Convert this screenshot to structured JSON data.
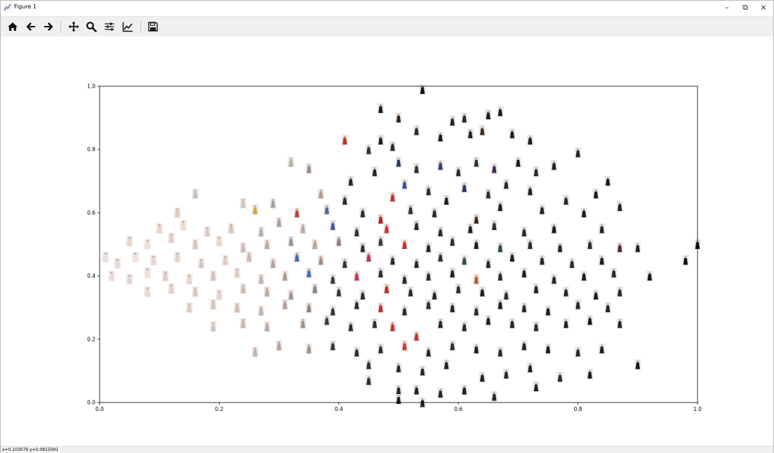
{
  "window": {
    "title": "Figure 1",
    "controls": {
      "minimize": "–",
      "restore": "⧉",
      "close": "×"
    }
  },
  "toolbar": {
    "buttons": [
      {
        "name": "home-icon"
      },
      {
        "name": "back-arrow-icon"
      },
      {
        "name": "forward-arrow-icon"
      },
      {
        "name": "pan-icon"
      },
      {
        "name": "zoom-icon"
      },
      {
        "name": "configure-subplots-icon"
      },
      {
        "name": "edit-axis-icon"
      },
      {
        "name": "save-icon"
      }
    ]
  },
  "status": {
    "coordinates": "x=0.103079    y=0.0815091"
  },
  "chart_data": {
    "type": "scatter",
    "title": "",
    "xlabel": "",
    "ylabel": "",
    "xlim": [
      0.0,
      1.0
    ],
    "ylim": [
      0.0,
      1.0
    ],
    "xticks": [
      "0.0",
      "0.2",
      "0.4",
      "0.6",
      "0.8",
      "1.0"
    ],
    "yticks": [
      "0.0",
      "0.2",
      "0.4",
      "0.6",
      "0.8",
      "1.0"
    ],
    "grid": false,
    "marker": "image thumbnails",
    "points": [
      {
        "x": 0.54,
        "y": 0.99,
        "c": "#111111"
      },
      {
        "x": 0.47,
        "y": 0.93,
        "c": "#1a1a1a"
      },
      {
        "x": 0.67,
        "y": 0.92,
        "c": "#1c1c1c"
      },
      {
        "x": 0.59,
        "y": 0.89,
        "c": "#222222"
      },
      {
        "x": 0.61,
        "y": 0.9,
        "c": "#262626"
      },
      {
        "x": 0.65,
        "y": 0.91,
        "c": "#1e1e1e"
      },
      {
        "x": 0.5,
        "y": 0.9,
        "c": "#2e2420"
      },
      {
        "x": 0.53,
        "y": 0.86,
        "c": "#2a2a2a"
      },
      {
        "x": 0.41,
        "y": 0.83,
        "c": "#c0312a"
      },
      {
        "x": 0.45,
        "y": 0.8,
        "c": "#303030"
      },
      {
        "x": 0.47,
        "y": 0.83,
        "c": "#202020"
      },
      {
        "x": 0.49,
        "y": 0.81,
        "c": "#2b2b2b"
      },
      {
        "x": 0.57,
        "y": 0.84,
        "c": "#191919"
      },
      {
        "x": 0.62,
        "y": 0.85,
        "c": "#222222"
      },
      {
        "x": 0.64,
        "y": 0.86,
        "c": "#3a2a24"
      },
      {
        "x": 0.69,
        "y": 0.85,
        "c": "#202020"
      },
      {
        "x": 0.72,
        "y": 0.83,
        "c": "#1d1d1d"
      },
      {
        "x": 0.8,
        "y": 0.79,
        "c": "#272727"
      },
      {
        "x": 0.32,
        "y": 0.76,
        "c": "#b8b0a8"
      },
      {
        "x": 0.35,
        "y": 0.74,
        "c": "#9a8e86"
      },
      {
        "x": 0.42,
        "y": 0.7,
        "c": "#2a2a2a"
      },
      {
        "x": 0.46,
        "y": 0.73,
        "c": "#262626"
      },
      {
        "x": 0.5,
        "y": 0.76,
        "c": "#2a3a6a"
      },
      {
        "x": 0.53,
        "y": 0.74,
        "c": "#303030"
      },
      {
        "x": 0.57,
        "y": 0.75,
        "c": "#2b3d8c"
      },
      {
        "x": 0.6,
        "y": 0.73,
        "c": "#282828"
      },
      {
        "x": 0.63,
        "y": 0.76,
        "c": "#303030"
      },
      {
        "x": 0.66,
        "y": 0.74,
        "c": "#4a2a5a"
      },
      {
        "x": 0.7,
        "y": 0.76,
        "c": "#1f1f1f"
      },
      {
        "x": 0.73,
        "y": 0.73,
        "c": "#2a2a2a"
      },
      {
        "x": 0.76,
        "y": 0.75,
        "c": "#232323"
      },
      {
        "x": 0.85,
        "y": 0.7,
        "c": "#1b1b1b"
      },
      {
        "x": 0.16,
        "y": 0.66,
        "c": "#c4bdd0"
      },
      {
        "x": 0.37,
        "y": 0.66,
        "c": "#b09a90"
      },
      {
        "x": 0.41,
        "y": 0.64,
        "c": "#2c2c2c"
      },
      {
        "x": 0.49,
        "y": 0.65,
        "c": "#cf2c2c"
      },
      {
        "x": 0.51,
        "y": 0.69,
        "c": "#3050b0"
      },
      {
        "x": 0.55,
        "y": 0.67,
        "c": "#2a2a2a"
      },
      {
        "x": 0.58,
        "y": 0.64,
        "c": "#1d1d1d"
      },
      {
        "x": 0.61,
        "y": 0.68,
        "c": "#25356e"
      },
      {
        "x": 0.65,
        "y": 0.66,
        "c": "#303030"
      },
      {
        "x": 0.68,
        "y": 0.69,
        "c": "#292929"
      },
      {
        "x": 0.72,
        "y": 0.67,
        "c": "#1e1e1e"
      },
      {
        "x": 0.78,
        "y": 0.64,
        "c": "#272727"
      },
      {
        "x": 0.83,
        "y": 0.66,
        "c": "#1a1a1a"
      },
      {
        "x": 0.87,
        "y": 0.62,
        "c": "#222222"
      },
      {
        "x": 0.13,
        "y": 0.6,
        "c": "#e7c7bd"
      },
      {
        "x": 0.24,
        "y": 0.63,
        "c": "#d0c8c0"
      },
      {
        "x": 0.26,
        "y": 0.61,
        "c": "#d9a640"
      },
      {
        "x": 0.29,
        "y": 0.63,
        "c": "#a0a0a0"
      },
      {
        "x": 0.33,
        "y": 0.6,
        "c": "#cd3a3a"
      },
      {
        "x": 0.38,
        "y": 0.61,
        "c": "#4a6ab0"
      },
      {
        "x": 0.44,
        "y": 0.6,
        "c": "#2c2c2c"
      },
      {
        "x": 0.47,
        "y": 0.58,
        "c": "#b32424"
      },
      {
        "x": 0.52,
        "y": 0.61,
        "c": "#303030"
      },
      {
        "x": 0.56,
        "y": 0.6,
        "c": "#2a2a2a"
      },
      {
        "x": 0.63,
        "y": 0.58,
        "c": "#3c2820"
      },
      {
        "x": 0.67,
        "y": 0.62,
        "c": "#1d1d1d"
      },
      {
        "x": 0.74,
        "y": 0.61,
        "c": "#232323"
      },
      {
        "x": 0.81,
        "y": 0.6,
        "c": "#1f1f1f"
      },
      {
        "x": 0.1,
        "y": 0.55,
        "c": "#ecd0c6"
      },
      {
        "x": 0.14,
        "y": 0.56,
        "c": "#f0d7cf"
      },
      {
        "x": 0.18,
        "y": 0.54,
        "c": "#e3c6bd"
      },
      {
        "x": 0.22,
        "y": 0.55,
        "c": "#d6c1ba"
      },
      {
        "x": 0.27,
        "y": 0.54,
        "c": "#b8b0aa"
      },
      {
        "x": 0.3,
        "y": 0.57,
        "c": "#a8a29e"
      },
      {
        "x": 0.34,
        "y": 0.55,
        "c": "#b5aaa3"
      },
      {
        "x": 0.39,
        "y": 0.56,
        "c": "#3c5aa8"
      },
      {
        "x": 0.43,
        "y": 0.54,
        "c": "#303030"
      },
      {
        "x": 0.48,
        "y": 0.55,
        "c": "#d23131"
      },
      {
        "x": 0.53,
        "y": 0.56,
        "c": "#262626"
      },
      {
        "x": 0.57,
        "y": 0.54,
        "c": "#282828"
      },
      {
        "x": 0.62,
        "y": 0.55,
        "c": "#1f1f1f"
      },
      {
        "x": 0.66,
        "y": 0.56,
        "c": "#2d2d2d"
      },
      {
        "x": 0.71,
        "y": 0.54,
        "c": "#2a2a2a"
      },
      {
        "x": 0.76,
        "y": 0.55,
        "c": "#1c1c1c"
      },
      {
        "x": 0.84,
        "y": 0.55,
        "c": "#262626"
      },
      {
        "x": 0.05,
        "y": 0.51,
        "c": "#e8d2cb"
      },
      {
        "x": 0.08,
        "y": 0.5,
        "c": "#f1ddd6"
      },
      {
        "x": 0.12,
        "y": 0.52,
        "c": "#e4cbc3"
      },
      {
        "x": 0.16,
        "y": 0.5,
        "c": "#dcc5bf"
      },
      {
        "x": 0.2,
        "y": 0.51,
        "c": "#e7d3cc"
      },
      {
        "x": 0.24,
        "y": 0.49,
        "c": "#cdb9b2"
      },
      {
        "x": 0.28,
        "y": 0.5,
        "c": "#b9a9a2"
      },
      {
        "x": 0.32,
        "y": 0.51,
        "c": "#9c938e"
      },
      {
        "x": 0.36,
        "y": 0.5,
        "c": "#b2a49c"
      },
      {
        "x": 0.4,
        "y": 0.51,
        "c": "#8a7e78"
      },
      {
        "x": 0.44,
        "y": 0.49,
        "c": "#2f2f2f"
      },
      {
        "x": 0.47,
        "y": 0.51,
        "c": "#3a3a3a"
      },
      {
        "x": 0.51,
        "y": 0.5,
        "c": "#cc2b2b"
      },
      {
        "x": 0.55,
        "y": 0.49,
        "c": "#252525"
      },
      {
        "x": 0.59,
        "y": 0.51,
        "c": "#2b2b2b"
      },
      {
        "x": 0.63,
        "y": 0.5,
        "c": "#1e1e1e"
      },
      {
        "x": 0.67,
        "y": 0.49,
        "c": "#2a4a3a"
      },
      {
        "x": 0.72,
        "y": 0.5,
        "c": "#292929"
      },
      {
        "x": 0.77,
        "y": 0.49,
        "c": "#202020"
      },
      {
        "x": 0.82,
        "y": 0.5,
        "c": "#2a2a2a"
      },
      {
        "x": 0.87,
        "y": 0.49,
        "c": "#5a2030"
      },
      {
        "x": 0.9,
        "y": 0.49,
        "c": "#222222"
      },
      {
        "x": 1.0,
        "y": 0.5,
        "c": "#111111"
      },
      {
        "x": 0.01,
        "y": 0.46,
        "c": "#ede0da"
      },
      {
        "x": 0.03,
        "y": 0.44,
        "c": "#e6d6cf"
      },
      {
        "x": 0.06,
        "y": 0.46,
        "c": "#f2e2dc"
      },
      {
        "x": 0.09,
        "y": 0.45,
        "c": "#e9d7d0"
      },
      {
        "x": 0.13,
        "y": 0.46,
        "c": "#e1cec7"
      },
      {
        "x": 0.17,
        "y": 0.44,
        "c": "#d8c3bc"
      },
      {
        "x": 0.21,
        "y": 0.45,
        "c": "#e2ccc5"
      },
      {
        "x": 0.25,
        "y": 0.46,
        "c": "#c9b6ae"
      },
      {
        "x": 0.29,
        "y": 0.44,
        "c": "#b4a39c"
      },
      {
        "x": 0.33,
        "y": 0.46,
        "c": "#4466bb"
      },
      {
        "x": 0.37,
        "y": 0.45,
        "c": "#9e8f88"
      },
      {
        "x": 0.41,
        "y": 0.44,
        "c": "#333333"
      },
      {
        "x": 0.45,
        "y": 0.46,
        "c": "#bf3050"
      },
      {
        "x": 0.49,
        "y": 0.45,
        "c": "#2a2a2a"
      },
      {
        "x": 0.53,
        "y": 0.44,
        "c": "#262626"
      },
      {
        "x": 0.57,
        "y": 0.46,
        "c": "#2e2e2e"
      },
      {
        "x": 0.61,
        "y": 0.45,
        "c": "#1e5a4a"
      },
      {
        "x": 0.65,
        "y": 0.44,
        "c": "#2a2a2a"
      },
      {
        "x": 0.69,
        "y": 0.46,
        "c": "#1f1f1f"
      },
      {
        "x": 0.74,
        "y": 0.45,
        "c": "#252525"
      },
      {
        "x": 0.79,
        "y": 0.44,
        "c": "#2b2b2b"
      },
      {
        "x": 0.84,
        "y": 0.45,
        "c": "#1d1d1d"
      },
      {
        "x": 0.98,
        "y": 0.45,
        "c": "#121212"
      },
      {
        "x": 0.02,
        "y": 0.4,
        "c": "#eadad3"
      },
      {
        "x": 0.05,
        "y": 0.39,
        "c": "#e3d1ca"
      },
      {
        "x": 0.08,
        "y": 0.41,
        "c": "#efdcd5"
      },
      {
        "x": 0.11,
        "y": 0.4,
        "c": "#dfcbc4"
      },
      {
        "x": 0.15,
        "y": 0.39,
        "c": "#e6d2cb"
      },
      {
        "x": 0.19,
        "y": 0.4,
        "c": "#d3bfb8"
      },
      {
        "x": 0.23,
        "y": 0.41,
        "c": "#e0c9c1"
      },
      {
        "x": 0.27,
        "y": 0.39,
        "c": "#c4b1a9"
      },
      {
        "x": 0.31,
        "y": 0.4,
        "c": "#aa9a94"
      },
      {
        "x": 0.35,
        "y": 0.41,
        "c": "#4a6cc0"
      },
      {
        "x": 0.39,
        "y": 0.39,
        "c": "#3a3a3a"
      },
      {
        "x": 0.43,
        "y": 0.4,
        "c": "#d03355"
      },
      {
        "x": 0.47,
        "y": 0.41,
        "c": "#2c2c2c"
      },
      {
        "x": 0.51,
        "y": 0.39,
        "c": "#272727"
      },
      {
        "x": 0.55,
        "y": 0.4,
        "c": "#2d2d2d"
      },
      {
        "x": 0.59,
        "y": 0.41,
        "c": "#202020"
      },
      {
        "x": 0.63,
        "y": 0.39,
        "c": "#c05a20"
      },
      {
        "x": 0.67,
        "y": 0.4,
        "c": "#2a2a2a"
      },
      {
        "x": 0.71,
        "y": 0.41,
        "c": "#222222"
      },
      {
        "x": 0.76,
        "y": 0.39,
        "c": "#262626"
      },
      {
        "x": 0.81,
        "y": 0.4,
        "c": "#1c1c1c"
      },
      {
        "x": 0.86,
        "y": 0.41,
        "c": "#2a2a2a"
      },
      {
        "x": 0.92,
        "y": 0.4,
        "c": "#131313"
      },
      {
        "x": 0.08,
        "y": 0.35,
        "c": "#e9d5ce"
      },
      {
        "x": 0.12,
        "y": 0.36,
        "c": "#e1ccc5"
      },
      {
        "x": 0.16,
        "y": 0.35,
        "c": "#dac5be"
      },
      {
        "x": 0.2,
        "y": 0.34,
        "c": "#e5d0c9"
      },
      {
        "x": 0.24,
        "y": 0.36,
        "c": "#cbb7af"
      },
      {
        "x": 0.28,
        "y": 0.35,
        "c": "#bba9a1"
      },
      {
        "x": 0.32,
        "y": 0.34,
        "c": "#a19590"
      },
      {
        "x": 0.36,
        "y": 0.36,
        "c": "#8e827c"
      },
      {
        "x": 0.4,
        "y": 0.35,
        "c": "#353535"
      },
      {
        "x": 0.44,
        "y": 0.34,
        "c": "#2e2e2e"
      },
      {
        "x": 0.48,
        "y": 0.36,
        "c": "#c62828"
      },
      {
        "x": 0.52,
        "y": 0.35,
        "c": "#292929"
      },
      {
        "x": 0.56,
        "y": 0.34,
        "c": "#242424"
      },
      {
        "x": 0.6,
        "y": 0.36,
        "c": "#2b2b2b"
      },
      {
        "x": 0.64,
        "y": 0.35,
        "c": "#1e1e1e"
      },
      {
        "x": 0.68,
        "y": 0.34,
        "c": "#2a2a2a"
      },
      {
        "x": 0.73,
        "y": 0.36,
        "c": "#212121"
      },
      {
        "x": 0.78,
        "y": 0.35,
        "c": "#262626"
      },
      {
        "x": 0.83,
        "y": 0.34,
        "c": "#1b1b1b"
      },
      {
        "x": 0.87,
        "y": 0.35,
        "c": "#2a2a2a"
      },
      {
        "x": 0.15,
        "y": 0.3,
        "c": "#e0cbc4"
      },
      {
        "x": 0.19,
        "y": 0.31,
        "c": "#d6c2bb"
      },
      {
        "x": 0.23,
        "y": 0.3,
        "c": "#cfbab3"
      },
      {
        "x": 0.27,
        "y": 0.29,
        "c": "#c0aea7"
      },
      {
        "x": 0.31,
        "y": 0.31,
        "c": "#b09f98"
      },
      {
        "x": 0.35,
        "y": 0.3,
        "c": "#8f847e"
      },
      {
        "x": 0.39,
        "y": 0.29,
        "c": "#343434"
      },
      {
        "x": 0.43,
        "y": 0.31,
        "c": "#2c2c2c"
      },
      {
        "x": 0.47,
        "y": 0.3,
        "c": "#c02a2a"
      },
      {
        "x": 0.51,
        "y": 0.29,
        "c": "#282828"
      },
      {
        "x": 0.55,
        "y": 0.31,
        "c": "#2e2e2e"
      },
      {
        "x": 0.59,
        "y": 0.3,
        "c": "#222222"
      },
      {
        "x": 0.63,
        "y": 0.29,
        "c": "#2a2a2a"
      },
      {
        "x": 0.67,
        "y": 0.31,
        "c": "#1f1f1f"
      },
      {
        "x": 0.71,
        "y": 0.3,
        "c": "#272727"
      },
      {
        "x": 0.75,
        "y": 0.29,
        "c": "#1d1d1d"
      },
      {
        "x": 0.8,
        "y": 0.31,
        "c": "#262626"
      },
      {
        "x": 0.85,
        "y": 0.3,
        "c": "#222222"
      },
      {
        "x": 0.19,
        "y": 0.24,
        "c": "#d8c4bd"
      },
      {
        "x": 0.24,
        "y": 0.25,
        "c": "#c9b5ae"
      },
      {
        "x": 0.28,
        "y": 0.24,
        "c": "#b9a8a1"
      },
      {
        "x": 0.34,
        "y": 0.25,
        "c": "#9f938e"
      },
      {
        "x": 0.38,
        "y": 0.26,
        "c": "#3a3a3a"
      },
      {
        "x": 0.42,
        "y": 0.24,
        "c": "#2f2f2f"
      },
      {
        "x": 0.46,
        "y": 0.25,
        "c": "#303030"
      },
      {
        "x": 0.49,
        "y": 0.24,
        "c": "#cc2d2d"
      },
      {
        "x": 0.53,
        "y": 0.21,
        "c": "#c83030"
      },
      {
        "x": 0.57,
        "y": 0.25,
        "c": "#262626"
      },
      {
        "x": 0.61,
        "y": 0.24,
        "c": "#2a2a2a"
      },
      {
        "x": 0.65,
        "y": 0.26,
        "c": "#1e1e1e"
      },
      {
        "x": 0.69,
        "y": 0.25,
        "c": "#252525"
      },
      {
        "x": 0.73,
        "y": 0.24,
        "c": "#2a2a2a"
      },
      {
        "x": 0.78,
        "y": 0.25,
        "c": "#202020"
      },
      {
        "x": 0.82,
        "y": 0.26,
        "c": "#1c1c1c"
      },
      {
        "x": 0.87,
        "y": 0.25,
        "c": "#272727"
      },
      {
        "x": 0.26,
        "y": 0.16,
        "c": "#c5b2ab"
      },
      {
        "x": 0.3,
        "y": 0.18,
        "c": "#b4a39c"
      },
      {
        "x": 0.35,
        "y": 0.17,
        "c": "#9e918b"
      },
      {
        "x": 0.39,
        "y": 0.18,
        "c": "#363636"
      },
      {
        "x": 0.43,
        "y": 0.16,
        "c": "#2c2c2c"
      },
      {
        "x": 0.47,
        "y": 0.17,
        "c": "#303030"
      },
      {
        "x": 0.51,
        "y": 0.18,
        "c": "#d33535"
      },
      {
        "x": 0.55,
        "y": 0.16,
        "c": "#262626"
      },
      {
        "x": 0.59,
        "y": 0.18,
        "c": "#2b2b2b"
      },
      {
        "x": 0.63,
        "y": 0.17,
        "c": "#1f1f1f"
      },
      {
        "x": 0.67,
        "y": 0.16,
        "c": "#282828"
      },
      {
        "x": 0.71,
        "y": 0.18,
        "c": "#242424"
      },
      {
        "x": 0.75,
        "y": 0.17,
        "c": "#1d1d1d"
      },
      {
        "x": 0.8,
        "y": 0.16,
        "c": "#272727"
      },
      {
        "x": 0.84,
        "y": 0.17,
        "c": "#222222"
      },
      {
        "x": 0.9,
        "y": 0.12,
        "c": "#161616"
      },
      {
        "x": 0.45,
        "y": 0.12,
        "c": "#2f2f2f"
      },
      {
        "x": 0.5,
        "y": 0.11,
        "c": "#2a2a2a"
      },
      {
        "x": 0.54,
        "y": 0.1,
        "c": "#282828"
      },
      {
        "x": 0.58,
        "y": 0.12,
        "c": "#232323"
      },
      {
        "x": 0.64,
        "y": 0.08,
        "c": "#1e1e1e"
      },
      {
        "x": 0.68,
        "y": 0.09,
        "c": "#272727"
      },
      {
        "x": 0.72,
        "y": 0.11,
        "c": "#202020"
      },
      {
        "x": 0.77,
        "y": 0.08,
        "c": "#262626"
      },
      {
        "x": 0.82,
        "y": 0.09,
        "c": "#1c1c1c"
      },
      {
        "x": 0.45,
        "y": 0.07,
        "c": "#2c2c2c"
      },
      {
        "x": 0.5,
        "y": 0.04,
        "c": "#292929"
      },
      {
        "x": 0.53,
        "y": 0.04,
        "c": "#222222"
      },
      {
        "x": 0.57,
        "y": 0.03,
        "c": "#252525"
      },
      {
        "x": 0.61,
        "y": 0.04,
        "c": "#1f1f1f"
      },
      {
        "x": 0.66,
        "y": 0.02,
        "c": "#262626"
      },
      {
        "x": 0.73,
        "y": 0.05,
        "c": "#212121"
      },
      {
        "x": 0.5,
        "y": 0.01,
        "c": "#1d1d1d"
      },
      {
        "x": 0.54,
        "y": 0.0,
        "c": "#232323"
      }
    ]
  }
}
